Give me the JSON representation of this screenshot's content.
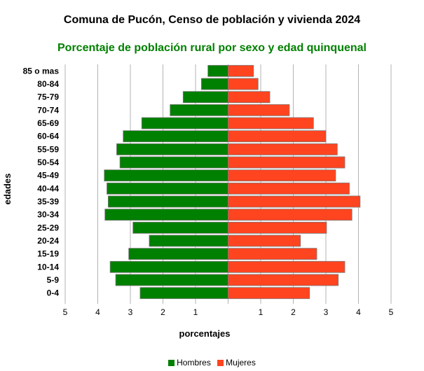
{
  "chart_data": {
    "type": "bar",
    "orientation": "horizontal",
    "layout": "population-pyramid",
    "title": "Comuna de Pucón, Censo de población y vivienda 2024",
    "subtitle": "Porcentaje de población rural por sexo y edad quinquenal",
    "xlabel": "porcentajes",
    "ylabel": "edades",
    "xlim": [
      -5,
      5
    ],
    "x_ticks": [
      "5",
      "4",
      "3",
      "2",
      "1",
      "",
      "1",
      "2",
      "3",
      "4",
      "5"
    ],
    "grid": "vertical",
    "legend_position": "bottom",
    "categories": [
      "0-4",
      "5-9",
      "10-14",
      "15-19",
      "20-24",
      "25-29",
      "30-34",
      "35-39",
      "40-44",
      "45-49",
      "50-54",
      "55-59",
      "60-64",
      "65-69",
      "70-74",
      "75-79",
      "80-84",
      "85 o mas"
    ],
    "series": [
      {
        "name": "Hombres",
        "color": "#008000",
        "side": "left",
        "values": [
          2.7,
          3.45,
          3.62,
          3.05,
          2.42,
          2.92,
          3.78,
          3.68,
          3.72,
          3.8,
          3.32,
          3.42,
          3.22,
          2.65,
          1.78,
          1.38,
          0.82,
          0.62
        ]
      },
      {
        "name": "Mujeres",
        "color": "#ff4420",
        "side": "right",
        "values": [
          2.5,
          3.38,
          3.58,
          2.72,
          2.22,
          3.02,
          3.8,
          4.05,
          3.72,
          3.3,
          3.58,
          3.35,
          3.0,
          2.62,
          1.88,
          1.28,
          0.92,
          0.78
        ]
      }
    ]
  },
  "colors": {
    "subtitle": "#008000",
    "grid": "#b3b3b3",
    "bar_border": "#7a7a7a"
  }
}
